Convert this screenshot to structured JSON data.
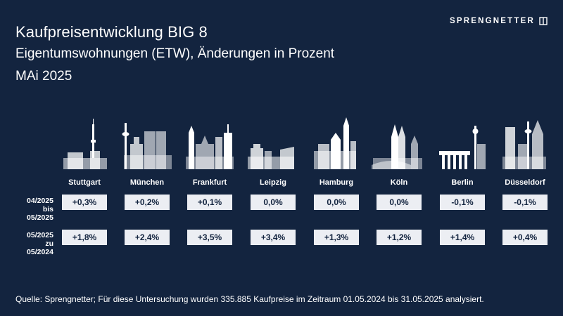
{
  "header": {
    "title": "Kaufpreisentwicklung BIG 8",
    "subtitle": "Eigentumswohnungen (ETW), Änderungen in Prozent",
    "date": "MAi 2025"
  },
  "brand": {
    "logo_text": "SPRENGNETTER"
  },
  "colors": {
    "background": "#13243f",
    "cell_bg": "#eceef3",
    "skyline": "#ffffff"
  },
  "rows": [
    {
      "label_line1": "04/2025",
      "label_line2": "bis 05/2025"
    },
    {
      "label_line1": "05/2025",
      "label_line2": "zu 05/2024"
    }
  ],
  "chart_data": {
    "type": "table",
    "columns": [
      "Stuttgart",
      "München",
      "Frankfurt",
      "Leipzig",
      "Hamburg",
      "Köln",
      "Berlin",
      "Düsseldorf"
    ],
    "series": [
      {
        "name": "04/2025 bis 05/2025",
        "values": [
          "+0,3%",
          "+0,2%",
          "+0,1%",
          "0,0%",
          "0,0%",
          "0,0%",
          "-0,1%",
          "-0,1%"
        ]
      },
      {
        "name": "05/2025 zu 05/2024",
        "values": [
          "+1,8%",
          "+2,4%",
          "+3,5%",
          "+3,4%",
          "+1,3%",
          "+1,2%",
          "+1,4%",
          "+0,4%"
        ]
      }
    ]
  },
  "footer": {
    "source": "Quelle: Sprengnetter; Für diese Untersuchung wurden 335.885 Kaufpreise im Zeitraum 01.05.2024 bis 31.05.2025 analysiert."
  }
}
